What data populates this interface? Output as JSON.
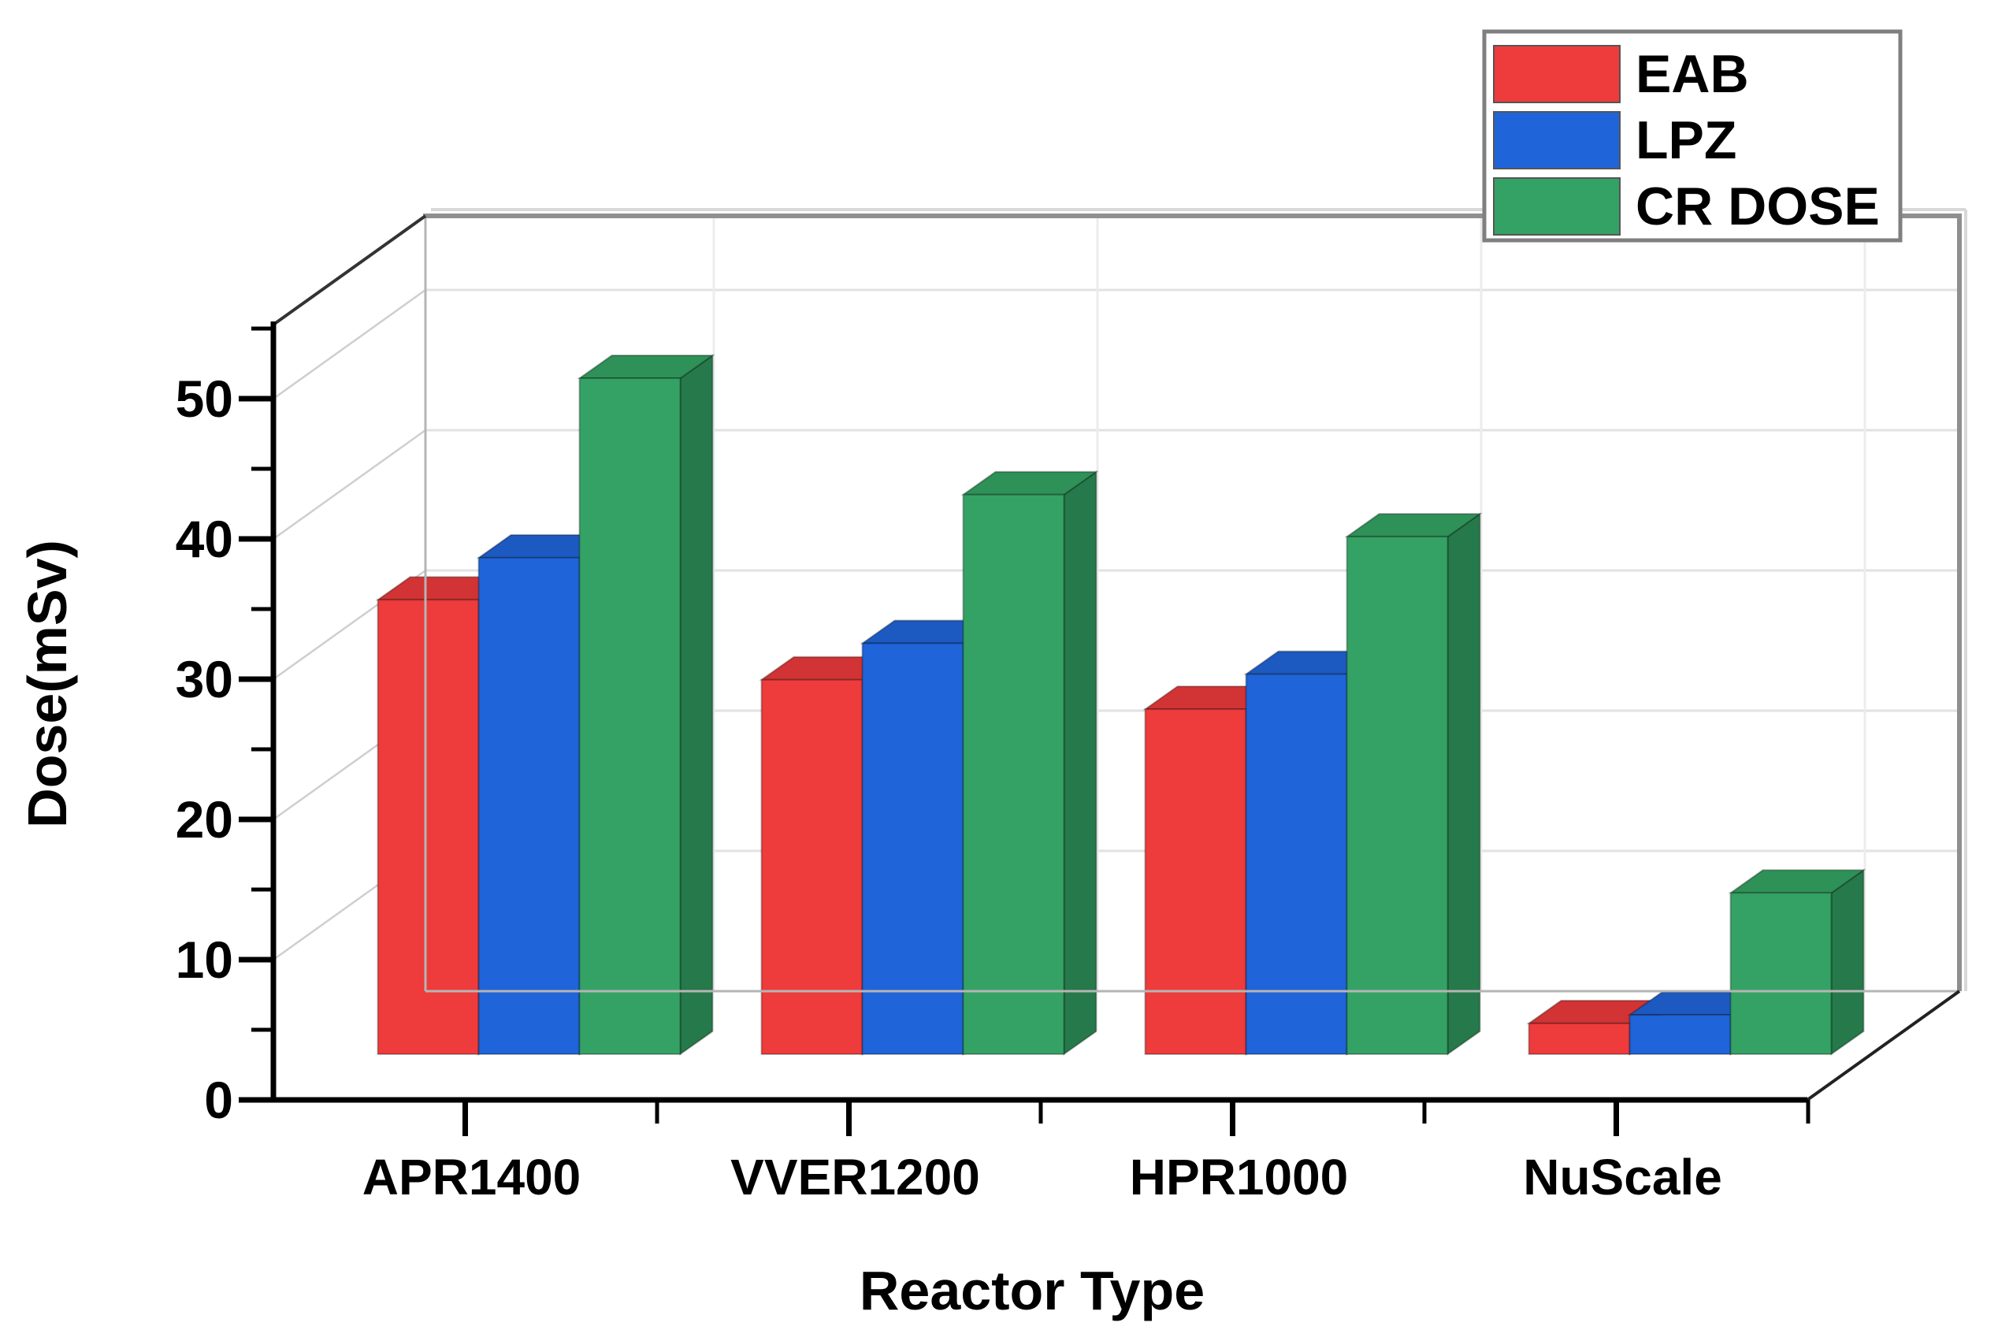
{
  "chart_data": {
    "type": "bar",
    "style": "3d-clustered-columns",
    "title": "",
    "xlabel": "Reactor Type",
    "ylabel": "Dose(mSv)",
    "categories": [
      "APR1400",
      "VVER1200",
      "HPR1000",
      "NuScale"
    ],
    "series": [
      {
        "name": "EAB",
        "color": "#EE3B3B",
        "top_color": "#D23334",
        "side_color": "#B62E2F",
        "values": [
          32.4,
          26.7,
          24.6,
          2.2
        ]
      },
      {
        "name": "LPZ",
        "color": "#1F64D8",
        "top_color": "#1C59C0",
        "side_color": "#17489E",
        "values": [
          35.4,
          29.3,
          27.1,
          2.8
        ]
      },
      {
        "name": "CR DOSE",
        "color": "#34A264",
        "top_color": "#2E9157",
        "side_color": "#26794A",
        "values": [
          48.2,
          39.9,
          36.9,
          11.5
        ]
      }
    ],
    "ylim": [
      0,
      55.3
    ],
    "y_major_ticks": [
      0,
      10,
      20,
      30,
      40,
      50
    ],
    "y_minor_ticks": [
      5,
      15,
      25,
      35,
      45,
      55
    ],
    "grid": "major horizontal lines on back and left walls",
    "legend_position": "top-right"
  },
  "legend": {
    "border_color": "#7f7f7f"
  },
  "frame": {
    "axis_color": "#000000",
    "back_edge_color": "#8f8f8f",
    "grid_color": "#e2e2e2",
    "wall_grid_color": "#cfcfcf"
  }
}
